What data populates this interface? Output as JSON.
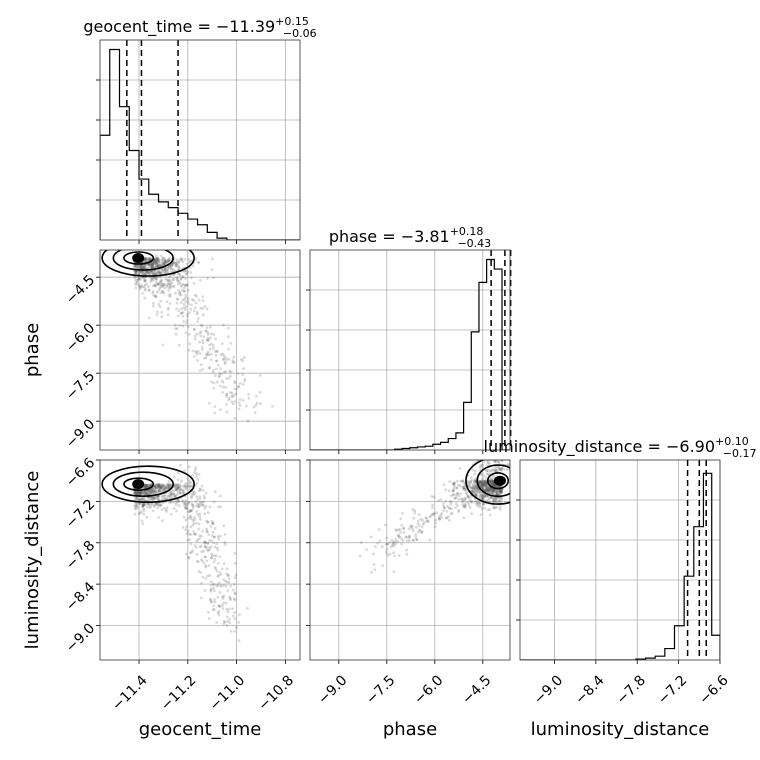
{
  "chart_data": {
    "type": "corner",
    "parameters": [
      "geocent_time",
      "phase",
      "luminosity_distance"
    ],
    "titles": [
      {
        "main": "geocent_time = −11.39",
        "plus": "+0.15",
        "minus": "−0.06"
      },
      {
        "main": "phase = −3.81",
        "plus": "+0.18",
        "minus": "−0.43"
      },
      {
        "main": "luminosity_distance = −6.90",
        "plus": "+0.10",
        "minus": "−0.17"
      }
    ],
    "ranges": [
      [
        -11.56,
        -10.74
      ],
      [
        -9.9,
        -3.65
      ],
      [
        -9.5,
        -6.6
      ]
    ],
    "ticks": [
      {
        "values": [
          -11.4,
          -11.2,
          -11.0,
          -10.8
        ],
        "labels": [
          "−11.4",
          "−11.2",
          "−11.0",
          "−10.8"
        ]
      },
      {
        "values": [
          -9.0,
          -7.5,
          -6.0,
          -4.5
        ],
        "labels": [
          "−9.0",
          "−7.5",
          "−6.0",
          "−4.5"
        ]
      },
      {
        "values": [
          -9.0,
          -8.4,
          -7.8,
          -7.2,
          -6.6
        ],
        "labels": [
          "−9.0",
          "−8.4",
          "−7.8",
          "−7.2",
          "−6.6"
        ]
      }
    ],
    "hist_ticks": [
      [
        -11.56,
        -11.51,
        -11.47,
        -11.42
      ],
      [
        -7.39,
        -7.0,
        -6.61,
        -6.22
      ],
      [
        -6.38,
        -6.15,
        -5.9,
        -5.66
      ]
    ],
    "histograms": [
      {
        "bins": [
          -11.56,
          -11.52,
          -11.48,
          -11.44,
          -11.4,
          -11.36,
          -11.32,
          -11.28,
          -11.24,
          -11.2,
          -11.16,
          -11.12,
          -11.08,
          -11.04,
          -11.0,
          -10.96,
          -10.92,
          -10.88,
          -10.84,
          -10.8,
          -10.74
        ],
        "counts": [
          0.55,
          1.0,
          0.7,
          0.47,
          0.32,
          0.24,
          0.2,
          0.17,
          0.14,
          0.11,
          0.08,
          0.04,
          0.01,
          0.0,
          0.0,
          0.0,
          0.0,
          0.0,
          0.0,
          0.0
        ],
        "quantiles": [
          -11.45,
          -11.39,
          -11.24
        ]
      },
      {
        "bins": [
          -9.9,
          -9.66,
          -9.42,
          -9.18,
          -8.94,
          -8.7,
          -8.46,
          -8.22,
          -7.98,
          -7.74,
          -7.5,
          -7.26,
          -7.02,
          -6.78,
          -6.54,
          -6.3,
          -6.06,
          -5.82,
          -5.58,
          -5.34,
          -5.1,
          -4.86,
          -4.62,
          -4.38,
          -4.14,
          -3.9,
          -3.65
        ],
        "counts": [
          0,
          0,
          0,
          0,
          0,
          0,
          0,
          0,
          0,
          0,
          0,
          0.004,
          0.008,
          0.012,
          0.016,
          0.02,
          0.03,
          0.04,
          0.06,
          0.09,
          0.25,
          0.62,
          0.88,
          1.0,
          0.95,
          0.0
        ],
        "quantiles": [
          -4.24,
          -3.81,
          -3.63
        ]
      },
      {
        "bins": [
          -9.5,
          -9.36,
          -9.22,
          -9.08,
          -8.94,
          -8.8,
          -8.66,
          -8.52,
          -8.38,
          -8.24,
          -8.1,
          -7.96,
          -7.82,
          -7.68,
          -7.54,
          -7.4,
          -7.26,
          -7.12,
          -6.98,
          -6.84,
          -6.72,
          -6.6
        ],
        "counts": [
          0,
          0,
          0,
          0,
          0,
          0,
          0,
          0,
          0,
          0,
          0,
          0,
          0.005,
          0.01,
          0.02,
          0.06,
          0.18,
          0.44,
          0.7,
          0.98,
          0.13
        ],
        "quantiles": [
          -7.07,
          -6.9,
          -6.8
        ]
      }
    ],
    "grid": true,
    "scatter_color": "#555555",
    "contour_color": "#000000"
  }
}
